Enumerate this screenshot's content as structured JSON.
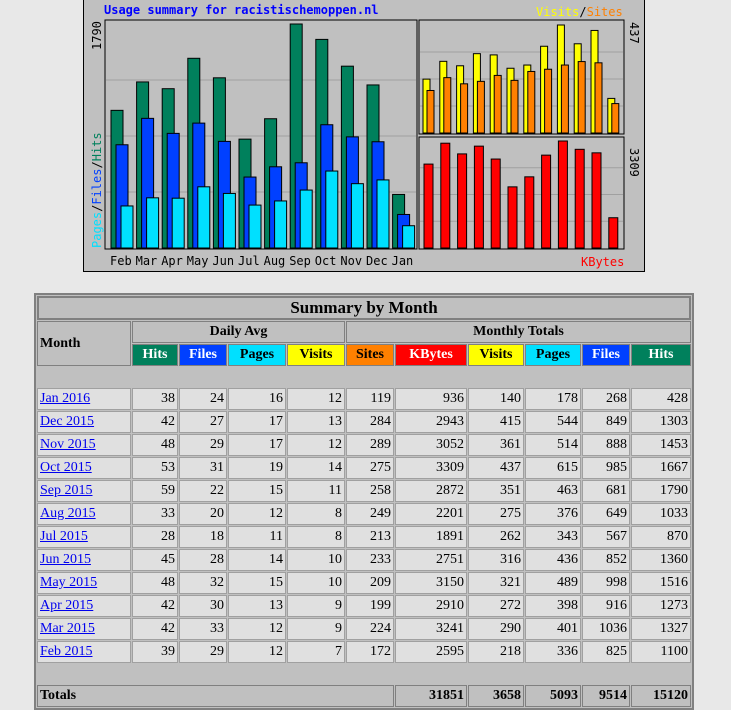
{
  "chart": {
    "title": "Usage summary for racistischemoppen.nl",
    "left_max_label": "1790",
    "right_top_max_label": "437",
    "right_bottom_max_label": "3309",
    "legend_left": [
      "Pages",
      "/",
      "Files",
      "/",
      "Hits"
    ],
    "legend_right_top": [
      "Visits",
      "/",
      "Sites"
    ],
    "legend_right_bottom": "KBytes",
    "colors": {
      "hits": "#00805c",
      "files": "#0040ff",
      "pages": "#00e0ff",
      "visits": "#ffff00",
      "sites": "#ff8000",
      "kbytes": "#ff0000",
      "bg": "#c0c0c0",
      "title": "#0000ff"
    }
  },
  "chart_data": {
    "type": "bar",
    "categories": [
      "Feb",
      "Mar",
      "Apr",
      "May",
      "Jun",
      "Jul",
      "Aug",
      "Sep",
      "Oct",
      "Nov",
      "Dec",
      "Jan"
    ],
    "ylim_left": [
      0,
      1790
    ],
    "ylim_right_top": [
      0,
      437
    ],
    "ylim_right_bottom": [
      0,
      3309
    ],
    "series": [
      {
        "name": "Hits",
        "values": [
          1100,
          1327,
          1273,
          1516,
          1360,
          870,
          1033,
          1790,
          1667,
          1453,
          1303,
          428
        ]
      },
      {
        "name": "Files",
        "values": [
          825,
          1036,
          916,
          998,
          852,
          567,
          649,
          681,
          985,
          888,
          849,
          268
        ]
      },
      {
        "name": "Pages",
        "values": [
          336,
          401,
          398,
          489,
          436,
          343,
          376,
          463,
          615,
          514,
          544,
          178
        ]
      },
      {
        "name": "Visits",
        "values": [
          218,
          290,
          272,
          321,
          316,
          262,
          275,
          351,
          437,
          361,
          415,
          140
        ]
      },
      {
        "name": "Sites",
        "values": [
          172,
          224,
          199,
          209,
          233,
          213,
          249,
          258,
          275,
          289,
          284,
          119
        ]
      },
      {
        "name": "KBytes",
        "values": [
          2595,
          3241,
          2910,
          3150,
          2751,
          1891,
          2201,
          2872,
          3309,
          3052,
          2943,
          936
        ]
      }
    ]
  },
  "table": {
    "title": "Summary by Month",
    "month_header": "Month",
    "daily_avg_header": "Daily Avg",
    "monthly_totals_header": "Monthly Totals",
    "daily_cols": [
      "Hits",
      "Files",
      "Pages",
      "Visits"
    ],
    "monthly_cols": [
      "Sites",
      "KBytes",
      "Visits",
      "Pages",
      "Files",
      "Hits"
    ],
    "rows": [
      {
        "month": "Jan 2016",
        "d_hits": "38",
        "d_files": "24",
        "d_pages": "16",
        "d_visits": "12",
        "sites": "119",
        "kbytes": "936",
        "visits": "140",
        "pages": "178",
        "files": "268",
        "hits": "428"
      },
      {
        "month": "Dec 2015",
        "d_hits": "42",
        "d_files": "27",
        "d_pages": "17",
        "d_visits": "13",
        "sites": "284",
        "kbytes": "2943",
        "visits": "415",
        "pages": "544",
        "files": "849",
        "hits": "1303"
      },
      {
        "month": "Nov 2015",
        "d_hits": "48",
        "d_files": "29",
        "d_pages": "17",
        "d_visits": "12",
        "sites": "289",
        "kbytes": "3052",
        "visits": "361",
        "pages": "514",
        "files": "888",
        "hits": "1453"
      },
      {
        "month": "Oct 2015",
        "d_hits": "53",
        "d_files": "31",
        "d_pages": "19",
        "d_visits": "14",
        "sites": "275",
        "kbytes": "3309",
        "visits": "437",
        "pages": "615",
        "files": "985",
        "hits": "1667"
      },
      {
        "month": "Sep 2015",
        "d_hits": "59",
        "d_files": "22",
        "d_pages": "15",
        "d_visits": "11",
        "sites": "258",
        "kbytes": "2872",
        "visits": "351",
        "pages": "463",
        "files": "681",
        "hits": "1790"
      },
      {
        "month": "Aug 2015",
        "d_hits": "33",
        "d_files": "20",
        "d_pages": "12",
        "d_visits": "8",
        "sites": "249",
        "kbytes": "2201",
        "visits": "275",
        "pages": "376",
        "files": "649",
        "hits": "1033"
      },
      {
        "month": "Jul 2015",
        "d_hits": "28",
        "d_files": "18",
        "d_pages": "11",
        "d_visits": "8",
        "sites": "213",
        "kbytes": "1891",
        "visits": "262",
        "pages": "343",
        "files": "567",
        "hits": "870"
      },
      {
        "month": "Jun 2015",
        "d_hits": "45",
        "d_files": "28",
        "d_pages": "14",
        "d_visits": "10",
        "sites": "233",
        "kbytes": "2751",
        "visits": "316",
        "pages": "436",
        "files": "852",
        "hits": "1360"
      },
      {
        "month": "May 2015",
        "d_hits": "48",
        "d_files": "32",
        "d_pages": "15",
        "d_visits": "10",
        "sites": "209",
        "kbytes": "3150",
        "visits": "321",
        "pages": "489",
        "files": "998",
        "hits": "1516"
      },
      {
        "month": "Apr 2015",
        "d_hits": "42",
        "d_files": "30",
        "d_pages": "13",
        "d_visits": "9",
        "sites": "199",
        "kbytes": "2910",
        "visits": "272",
        "pages": "398",
        "files": "916",
        "hits": "1273"
      },
      {
        "month": "Mar 2015",
        "d_hits": "42",
        "d_files": "33",
        "d_pages": "12",
        "d_visits": "9",
        "sites": "224",
        "kbytes": "3241",
        "visits": "290",
        "pages": "401",
        "files": "1036",
        "hits": "1327"
      },
      {
        "month": "Feb 2015",
        "d_hits": "39",
        "d_files": "29",
        "d_pages": "12",
        "d_visits": "7",
        "sites": "172",
        "kbytes": "2595",
        "visits": "218",
        "pages": "336",
        "files": "825",
        "hits": "1100"
      }
    ],
    "totals": {
      "label": "Totals",
      "kbytes": "31851",
      "visits": "3658",
      "pages": "5093",
      "files": "9514",
      "hits": "15120"
    }
  }
}
